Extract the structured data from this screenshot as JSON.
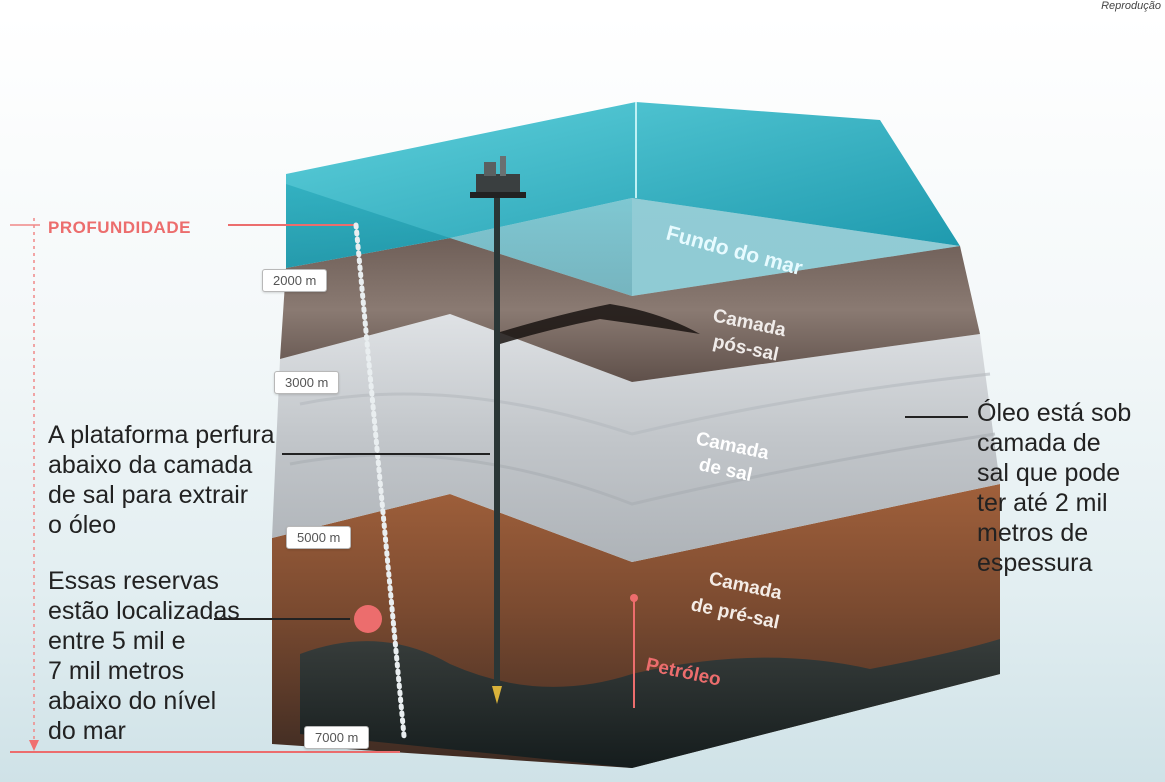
{
  "credit": "Reprodução",
  "depth": {
    "title": "PROFUNDIDADE",
    "markers": [
      "2000 m",
      "3000 m",
      "5000 m",
      "7000 m"
    ]
  },
  "layers": {
    "seafloor": "Fundo do mar",
    "post_salt": [
      "Camada",
      "pós-sal"
    ],
    "salt": [
      "Camada",
      "de sal"
    ],
    "pre_salt": [
      "Camada",
      "de pré-sal"
    ],
    "oil": "Petróleo"
  },
  "annotations": {
    "platform": "A plataforma perfura\nabaixo da camada\nde sal para extrair\no óleo",
    "reserves": "Essas reservas\nestão localizadas\nentre 5 mil e\n7 mil metros\nabaixo do nível\ndo mar",
    "oil_under_salt": "Óleo está sob\ncamada de\nsal que pode\nter até 2 mil\nmetros de\nespessura"
  },
  "colors": {
    "accent": "#ec6d6d",
    "water": "#2fb3c4",
    "post_salt": "#7a6a62",
    "salt": "#c9cdd1",
    "pre_salt": "#8a4f30"
  }
}
